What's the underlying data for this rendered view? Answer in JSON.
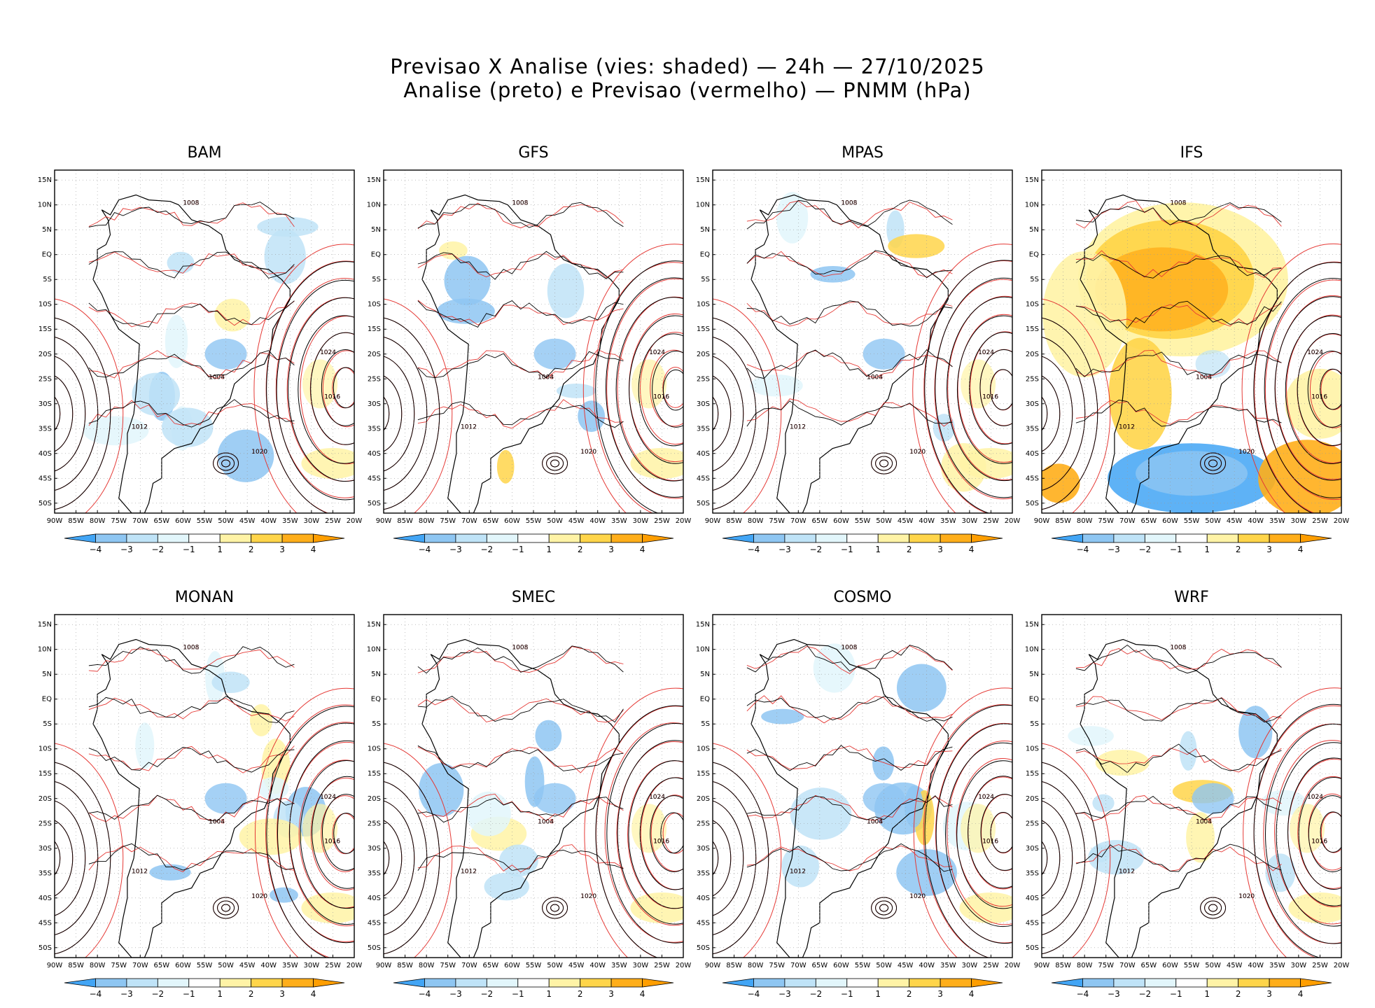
{
  "header": {
    "line1": "Previsao X Analise (vies: shaded) — 24h — 27/10/2025",
    "line2": "Analise (preto) e Previsao (vermelho) — PNMM (hPa)"
  },
  "axes": {
    "lat_labels": [
      "15N",
      "10N",
      "5N",
      "EQ",
      "5S",
      "10S",
      "15S",
      "20S",
      "25S",
      "30S",
      "35S",
      "40S",
      "45S",
      "50S"
    ],
    "lon_labels": [
      "90W",
      "85W",
      "80W",
      "75W",
      "70W",
      "65W",
      "60W",
      "55W",
      "50W",
      "45W",
      "40W",
      "35W",
      "30W",
      "25W",
      "20W"
    ]
  },
  "colorbar": {
    "labels": [
      "−4",
      "−3",
      "−2",
      "−1",
      "1",
      "2",
      "3",
      "4"
    ],
    "colors": [
      "#42a5f5",
      "#8ec6f2",
      "#bfe3f7",
      "#e2f6fb",
      "#ffffff",
      "#fff3a6",
      "#ffd54a",
      "#ffae1a",
      "#ff9e00"
    ]
  },
  "panels": [
    {
      "name": "BAM",
      "title": "BAM",
      "bias": "mixed"
    },
    {
      "name": "GFS",
      "title": "GFS",
      "bias": "weak"
    },
    {
      "name": "MPAS",
      "title": "MPAS",
      "bias": "weak"
    },
    {
      "name": "IFS",
      "title": "IFS",
      "bias": "strong"
    },
    {
      "name": "MONAN",
      "title": "MONAN",
      "bias": "mixed"
    },
    {
      "name": "SMEC",
      "title": "SMEC",
      "bias": "weak"
    },
    {
      "name": "COSMO",
      "title": "COSMO",
      "bias": "mixed"
    },
    {
      "name": "WRF",
      "title": "WRF",
      "bias": "mixed"
    }
  ],
  "isobar_labels": {
    "analysis": [
      "1008",
      "1012",
      "1016",
      "1020",
      "1024",
      "1004"
    ],
    "forecast": [
      "1008",
      "1012",
      "1016",
      "1020",
      "1024"
    ]
  },
  "chart_data": {
    "type": "heatmap",
    "title": "Previsao X Analise (vies: shaded) — 24h — 27/10/2025",
    "subtitle": "Analise (preto) e Previsao (vermelho) — PNMM (hPa)",
    "variable": "PNMM bias (forecast minus analysis), hPa",
    "color_levels": [
      -4,
      -3,
      -2,
      -1,
      1,
      2,
      3,
      4
    ],
    "lon_range": [
      -90,
      -20
    ],
    "lat_range": [
      -52,
      17
    ],
    "models": [
      "BAM",
      "GFS",
      "MPAS",
      "IFS",
      "MONAN",
      "SMEC",
      "COSMO",
      "WRF"
    ],
    "analysis_contour_color": "#000000",
    "forecast_contour_color": "#e53935"
  }
}
